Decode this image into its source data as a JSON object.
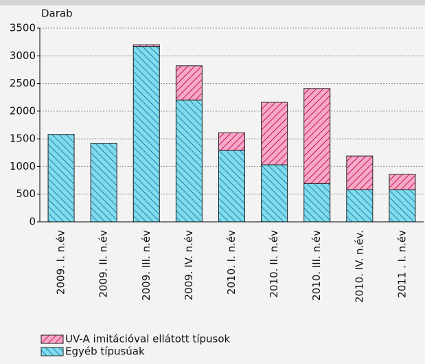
{
  "chart_data": {
    "type": "stacked_bar",
    "y_label": "Darab",
    "categories": [
      "2009. I. n.év",
      "2009. II. n.év",
      "2009. III. n.év",
      "2009. IV. n.év",
      "2010. I. n.év",
      "2010. II. n.év",
      "2010. III. n.év",
      "2010. IV. n.év.",
      "2011 . I. n.év"
    ],
    "series": [
      {
        "name": "Egyéb típusúak",
        "color": "#7fdcea",
        "values": [
          1580,
          1420,
          3170,
          2200,
          1290,
          1030,
          690,
          580,
          580
        ]
      },
      {
        "name": "UV-A imitációval ellátott típusok",
        "color": "#f7a8c8",
        "values": [
          0,
          0,
          30,
          620,
          320,
          1130,
          1720,
          610,
          280
        ]
      }
    ],
    "ylim": [
      0,
      3500
    ],
    "yticks": [
      0,
      500,
      1000,
      1500,
      2000,
      2500,
      3000,
      3500
    ],
    "grid": true
  }
}
